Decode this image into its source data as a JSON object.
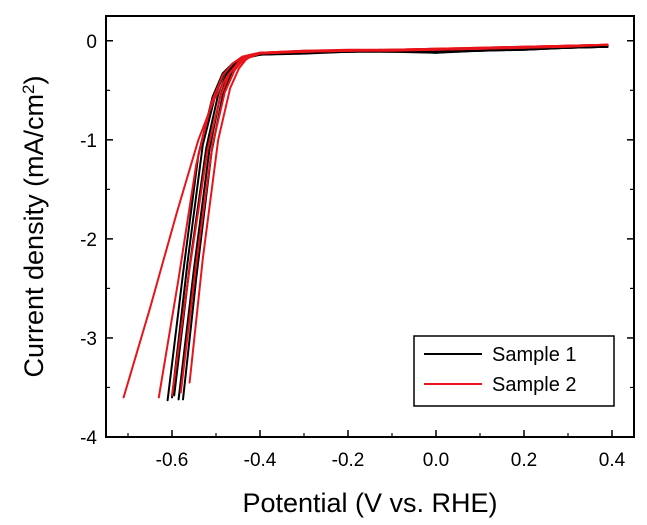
{
  "chart_data": {
    "type": "line",
    "xlabel": "Potential (V vs. RHE)",
    "ylabel_main": "Current density (mA/cm",
    "ylabel_sup": "2",
    "ylabel_close": ")",
    "xlim": [
      -0.75,
      0.45
    ],
    "ylim": [
      -4.0,
      0.25
    ],
    "xticks": [
      -0.6,
      -0.4,
      -0.2,
      0.0,
      0.2,
      0.4
    ],
    "xtick_labels": [
      "-0.6",
      "-0.4",
      "-0.2",
      "0.0",
      "0.2",
      "0.4"
    ],
    "yticks": [
      0,
      -1,
      -2,
      -3,
      -4
    ],
    "ytick_labels": [
      "0",
      "-1",
      "-2",
      "-3",
      "-4"
    ],
    "grid": false,
    "legend_position": "bottom-right",
    "series": [
      {
        "name": "Sample 1",
        "color": "#000000",
        "curves": [
          {
            "x": [
              -0.585,
              -0.55,
              -0.515,
              -0.49,
              -0.47,
              -0.45,
              -0.43,
              -0.4,
              -0.3,
              -0.2,
              -0.1,
              0.0,
              0.1,
              0.2,
              0.3,
              0.39
            ],
            "y": [
              -3.62,
              -2.3,
              -1.1,
              -0.55,
              -0.32,
              -0.22,
              -0.17,
              -0.14,
              -0.12,
              -0.11,
              -0.1,
              -0.11,
              -0.1,
              -0.08,
              -0.07,
              -0.06
            ]
          },
          {
            "x": [
              -0.6,
              -0.565,
              -0.53,
              -0.5,
              -0.478,
              -0.455,
              -0.435,
              -0.4,
              -0.3,
              -0.2,
              -0.1,
              0.0,
              0.1,
              0.2,
              0.3,
              0.39
            ],
            "y": [
              -3.6,
              -2.25,
              -1.05,
              -0.52,
              -0.3,
              -0.21,
              -0.16,
              -0.13,
              -0.12,
              -0.1,
              -0.11,
              -0.12,
              -0.09,
              -0.08,
              -0.07,
              -0.05
            ]
          },
          {
            "x": [
              -0.61,
              -0.575,
              -0.54,
              -0.508,
              -0.485,
              -0.462,
              -0.44,
              -0.4,
              -0.3,
              -0.2,
              -0.1,
              0.0,
              0.1,
              0.2,
              0.3,
              0.39
            ],
            "y": [
              -3.63,
              -2.35,
              -1.15,
              -0.57,
              -0.33,
              -0.23,
              -0.17,
              -0.14,
              -0.13,
              -0.11,
              -0.1,
              -0.12,
              -0.1,
              -0.09,
              -0.07,
              -0.06
            ]
          },
          {
            "x": [
              -0.595,
              -0.56,
              -0.522,
              -0.495,
              -0.474,
              -0.452,
              -0.432,
              -0.4,
              -0.3,
              -0.2,
              -0.1,
              0.0,
              0.1,
              0.2,
              0.3,
              0.39
            ],
            "y": [
              -3.58,
              -2.28,
              -1.08,
              -0.54,
              -0.31,
              -0.22,
              -0.16,
              -0.14,
              -0.12,
              -0.11,
              -0.11,
              -0.1,
              -0.09,
              -0.08,
              -0.07,
              -0.06
            ]
          },
          {
            "x": [
              -0.575,
              -0.545,
              -0.51,
              -0.485,
              -0.465,
              -0.446,
              -0.428,
              -0.4,
              -0.3,
              -0.2,
              -0.1,
              0.0,
              0.1,
              0.2,
              0.3,
              0.39
            ],
            "y": [
              -3.62,
              -2.4,
              -1.12,
              -0.56,
              -0.32,
              -0.22,
              -0.17,
              -0.14,
              -0.12,
              -0.11,
              -0.1,
              -0.11,
              -0.1,
              -0.09,
              -0.07,
              -0.06
            ]
          }
        ]
      },
      {
        "name": "Sample 2",
        "color": "#e8141b",
        "curves": [
          {
            "x": [
              -0.71,
              -0.65,
              -0.59,
              -0.54,
              -0.505,
              -0.475,
              -0.45,
              -0.425,
              -0.4,
              -0.3,
              -0.2,
              -0.1,
              0.0,
              0.1,
              0.2,
              0.3,
              0.39
            ],
            "y": [
              -3.6,
              -2.7,
              -1.75,
              -1.0,
              -0.6,
              -0.36,
              -0.24,
              -0.17,
              -0.13,
              -0.11,
              -0.1,
              -0.1,
              -0.09,
              -0.08,
              -0.07,
              -0.06,
              -0.04
            ]
          },
          {
            "x": [
              -0.63,
              -0.585,
              -0.545,
              -0.51,
              -0.485,
              -0.462,
              -0.44,
              -0.4,
              -0.3,
              -0.2,
              -0.1,
              0.0,
              0.1,
              0.2,
              0.3,
              0.39
            ],
            "y": [
              -3.6,
              -2.4,
              -1.25,
              -0.62,
              -0.35,
              -0.23,
              -0.16,
              -0.12,
              -0.11,
              -0.1,
              -0.09,
              -0.09,
              -0.08,
              -0.07,
              -0.05,
              -0.04
            ]
          },
          {
            "x": [
              -0.58,
              -0.545,
              -0.508,
              -0.48,
              -0.458,
              -0.44,
              -0.422,
              -0.4,
              -0.3,
              -0.2,
              -0.1,
              0.0,
              0.1,
              0.2,
              0.3,
              0.39
            ],
            "y": [
              -3.55,
              -2.25,
              -1.05,
              -0.52,
              -0.3,
              -0.2,
              -0.15,
              -0.12,
              -0.1,
              -0.1,
              -0.09,
              -0.08,
              -0.08,
              -0.06,
              -0.05,
              -0.04
            ]
          },
          {
            "x": [
              -0.56,
              -0.53,
              -0.495,
              -0.468,
              -0.448,
              -0.432,
              -0.415,
              -0.4,
              -0.3,
              -0.2,
              -0.1,
              0.0,
              0.1,
              0.2,
              0.3,
              0.39
            ],
            "y": [
              -3.45,
              -2.2,
              -1.0,
              -0.48,
              -0.28,
              -0.19,
              -0.14,
              -0.12,
              -0.1,
              -0.09,
              -0.09,
              -0.08,
              -0.07,
              -0.06,
              -0.05,
              -0.04
            ]
          },
          {
            "x": [
              -0.6,
              -0.56,
              -0.52,
              -0.49,
              -0.468,
              -0.448,
              -0.43,
              -0.4,
              -0.3,
              -0.2,
              -0.1,
              0.0,
              0.1,
              0.2,
              0.3,
              0.39
            ],
            "y": [
              -3.58,
              -2.3,
              -1.12,
              -0.56,
              -0.32,
              -0.21,
              -0.15,
              -0.12,
              -0.11,
              -0.1,
              -0.09,
              -0.08,
              -0.07,
              -0.06,
              -0.05,
              -0.04
            ]
          }
        ]
      }
    ]
  }
}
